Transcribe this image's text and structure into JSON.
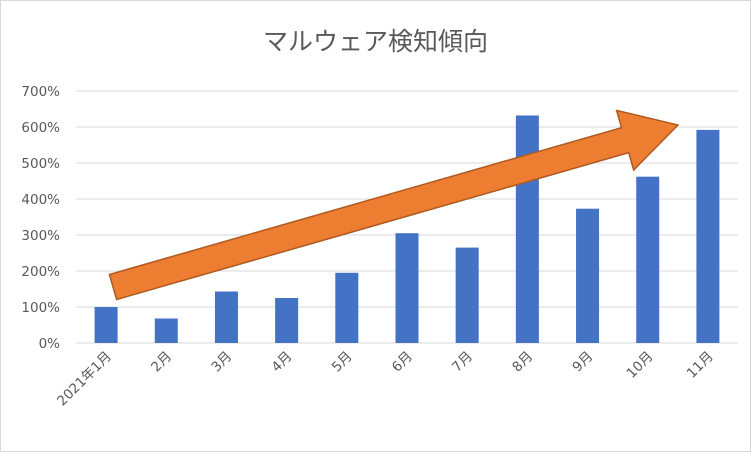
{
  "chart_data": {
    "type": "bar",
    "title": "マルウェア検知傾向",
    "categories": [
      "2021年1月",
      "2月",
      "3月",
      "4月",
      "5月",
      "6月",
      "7月",
      "8月",
      "9月",
      "10月",
      "11月"
    ],
    "values": [
      100,
      68,
      143,
      125,
      195,
      305,
      265,
      632,
      373,
      462,
      592
    ],
    "ylim": [
      0,
      700
    ],
    "yticks": [
      "0%",
      "100%",
      "200%",
      "300%",
      "400%",
      "500%",
      "600%",
      "700%"
    ],
    "unit": "%",
    "grid": true,
    "legend": "none",
    "colors": {
      "bar": "#4472C4",
      "arrow": "#ED7D31",
      "arrow_stroke": "#AE5A21",
      "grid": "#d9d9d9"
    },
    "annotation": "upward-trend-arrow"
  }
}
